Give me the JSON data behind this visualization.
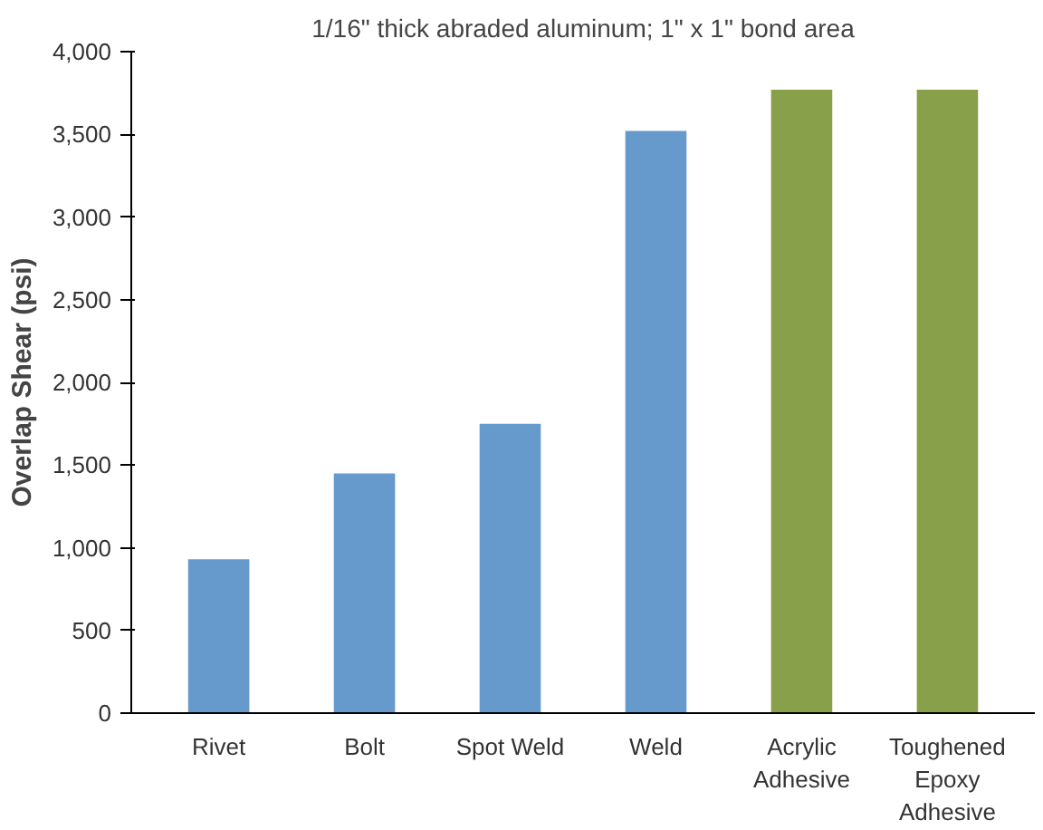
{
  "chart_data": {
    "type": "bar",
    "title": "1/16\" thick abraded aluminum; 1\" x 1\" bond area",
    "ylabel": "Overlap Shear (psi)",
    "categories": [
      "Rivet",
      "Bolt",
      "Spot Weld",
      "Weld",
      "Acrylic Adhesive",
      "Toughened Epoxy Adhesive"
    ],
    "values": [
      930,
      1450,
      1750,
      3520,
      3770,
      3770
    ],
    "colors": [
      "#6699cc",
      "#6699cc",
      "#6699cc",
      "#6699cc",
      "#88a04a",
      "#88a04a"
    ],
    "ylim": [
      0,
      4000
    ],
    "yticks": [
      {
        "value": 0,
        "label": "0"
      },
      {
        "value": 500,
        "label": "500"
      },
      {
        "value": 1000,
        "label": "1,000"
      },
      {
        "value": 1500,
        "label": "1,500"
      },
      {
        "value": 2000,
        "label": "2,000"
      },
      {
        "value": 2500,
        "label": "2,500"
      },
      {
        "value": 3000,
        "label": "3,000"
      },
      {
        "value": 3500,
        "label": "3,500"
      },
      {
        "value": 4000,
        "label": "4,000"
      }
    ],
    "grid": false
  }
}
